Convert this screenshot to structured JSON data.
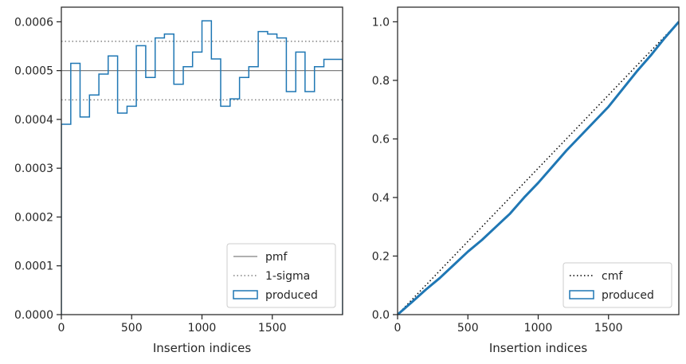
{
  "chart_data": [
    {
      "type": "step",
      "xlabel": "Insertion indices",
      "ylabel": "",
      "xlim": [
        0,
        2000
      ],
      "ylim": [
        0,
        0.00063
      ],
      "xticks": [
        0,
        500,
        1000,
        1500
      ],
      "xtick_labels": [
        "0",
        "500",
        "1000",
        "1500"
      ],
      "yticks": [
        0,
        0.0001,
        0.0002,
        0.0003,
        0.0004,
        0.0005,
        0.0006
      ],
      "ytick_labels": [
        "0.0000",
        "0.0001",
        "0.0002",
        "0.0003",
        "0.0004",
        "0.0005",
        "0.0006"
      ],
      "grid": false,
      "legend_position": "bottom-right",
      "series": [
        {
          "name": "pmf",
          "style": "solid",
          "color": "#808080",
          "y": 0.0005
        },
        {
          "name": "1-sigma",
          "style": "dotted",
          "color": "#808080",
          "y_lower": 0.00044,
          "y_upper": 0.00056
        },
        {
          "name": "produced",
          "style": "step",
          "color": "#1f77b4",
          "bin_edges": [
            0,
            67,
            133,
            200,
            267,
            333,
            400,
            467,
            533,
            600,
            667,
            733,
            800,
            867,
            933,
            1000,
            1067,
            1133,
            1200,
            1267,
            1333,
            1400,
            1467,
            1533,
            1600,
            1667,
            1733,
            1800,
            1867,
            1933,
            2000
          ],
          "values": [
            0.00039,
            0.000515,
            0.000405,
            0.00045,
            0.000493,
            0.00053,
            0.000413,
            0.000427,
            0.000551,
            0.000486,
            0.000567,
            0.000575,
            0.000472,
            0.000508,
            0.000538,
            0.000602,
            0.000524,
            0.000427,
            0.000442,
            0.000486,
            0.000508,
            0.00058,
            0.000575,
            0.000567,
            0.000457,
            0.000538,
            0.000457,
            0.000508,
            0.000523,
            0.000523
          ]
        }
      ]
    },
    {
      "type": "line",
      "xlabel": "Insertion indices",
      "ylabel": "",
      "xlim": [
        0,
        2000
      ],
      "ylim": [
        0,
        1.05
      ],
      "xticks": [
        0,
        500,
        1000,
        1500
      ],
      "xtick_labels": [
        "0",
        "500",
        "1000",
        "1500"
      ],
      "yticks": [
        0,
        0.2,
        0.4,
        0.6,
        0.8,
        1.0
      ],
      "ytick_labels": [
        "0.0",
        "0.2",
        "0.4",
        "0.6",
        "0.8",
        "1.0"
      ],
      "grid": false,
      "legend_position": "bottom-right",
      "series": [
        {
          "name": "cmf",
          "style": "dotted",
          "color": "#000000",
          "x": [
            0,
            2000
          ],
          "y": [
            0,
            1.0
          ]
        },
        {
          "name": "produced",
          "style": "step",
          "color": "#1f77b4",
          "x": [
            0,
            100,
            200,
            300,
            400,
            500,
            600,
            700,
            800,
            900,
            1000,
            1100,
            1200,
            1300,
            1400,
            1500,
            1600,
            1700,
            1800,
            1900,
            2000
          ],
          "y": [
            0,
            0.042,
            0.085,
            0.125,
            0.17,
            0.215,
            0.255,
            0.3,
            0.345,
            0.4,
            0.45,
            0.505,
            0.56,
            0.61,
            0.66,
            0.71,
            0.77,
            0.83,
            0.885,
            0.945,
            1.0
          ]
        }
      ]
    }
  ]
}
